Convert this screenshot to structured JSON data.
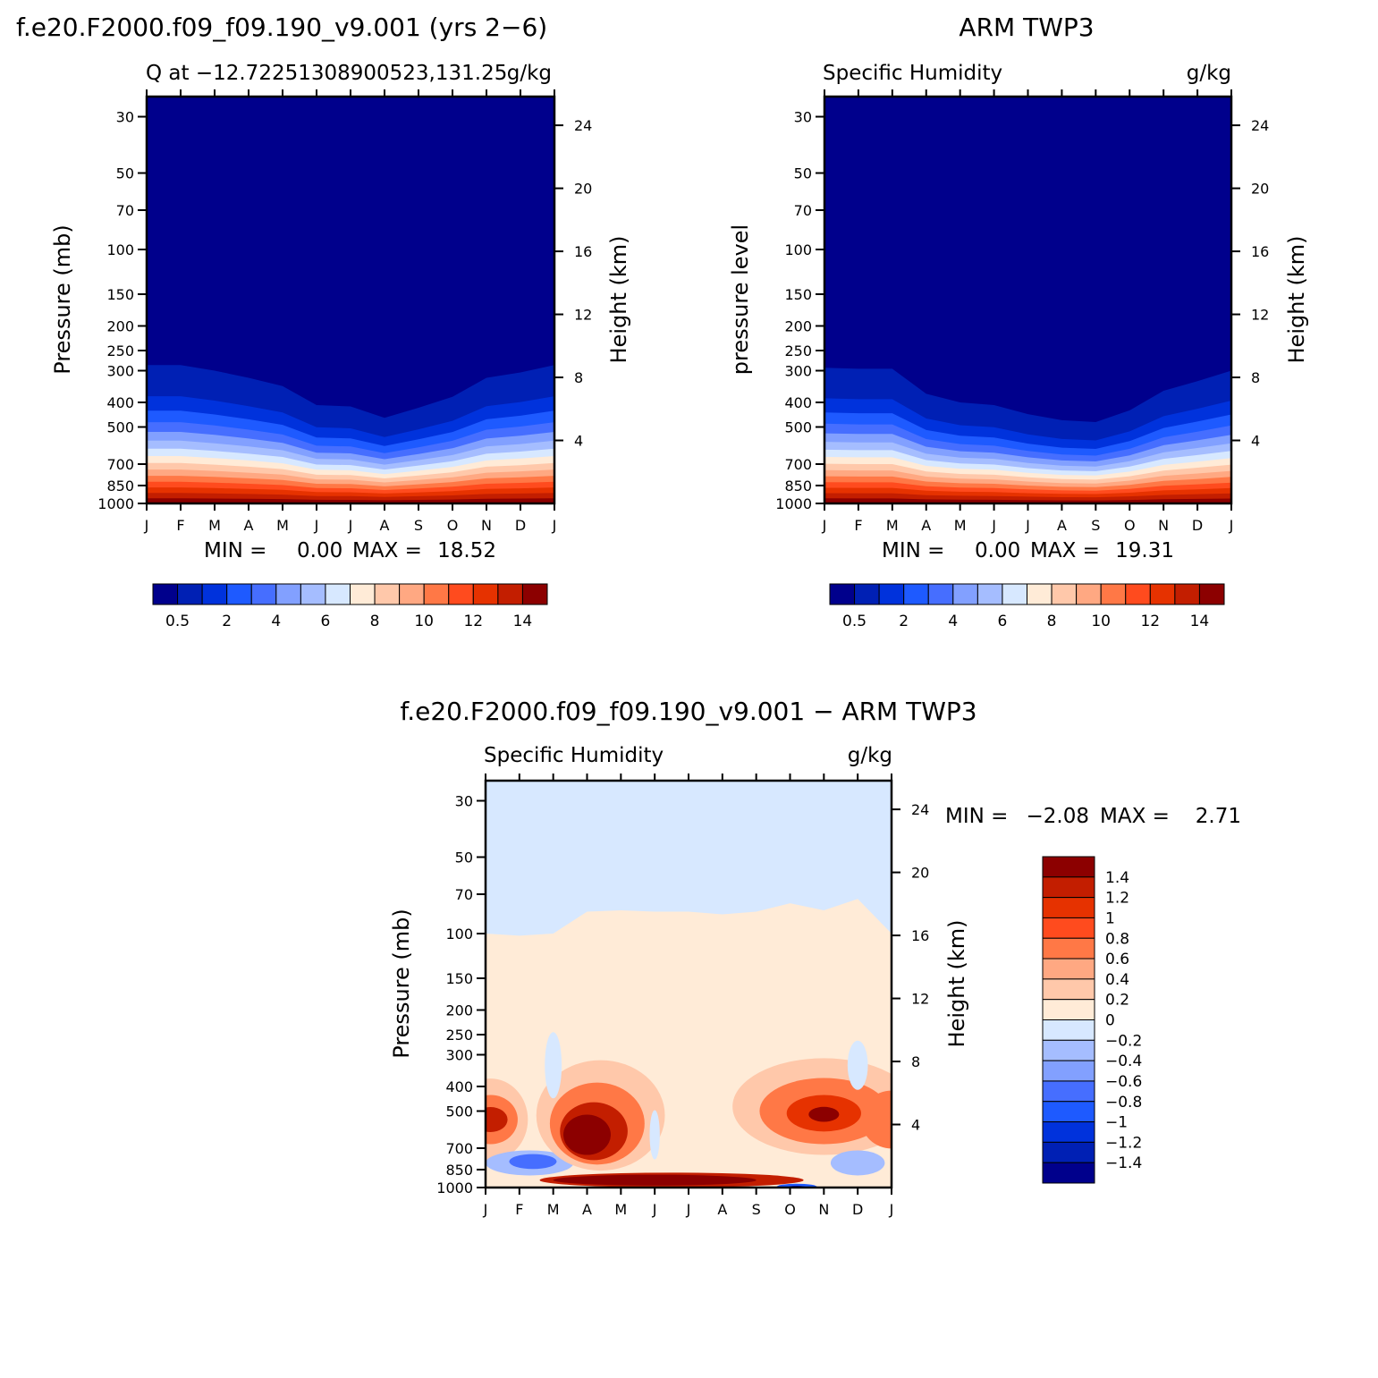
{
  "chart_data": [
    {
      "type": "contour",
      "panel": "model",
      "main_title": "f.e20.F2000.f09_f09.190_v9.001 (yrs 2−6)",
      "left_subtitle": "Q at −12.72251308900523,131.25",
      "right_subtitle": "g/kg",
      "ylabel": "Pressure (mb)",
      "ylabel_right": "Height (km)",
      "min_text": "MIN =",
      "min_value": "0.00",
      "max_text": "MAX =",
      "max_value": "18.52",
      "surface_profile_500mb_level_months": [
        0,
        1,
        2,
        3,
        4,
        5,
        6,
        7,
        8,
        9,
        10,
        11,
        12
      ],
      "moisture_top_mb": [
        285,
        285,
        300,
        320,
        345,
        410,
        415,
        460,
        420,
        380,
        320,
        305,
        285
      ]
    },
    {
      "type": "contour",
      "panel": "observations",
      "main_title": "ARM TWP3",
      "left_subtitle": "Specific Humidity",
      "right_subtitle": "g/kg",
      "ylabel": "pressure level",
      "ylabel_right": "Height (km)",
      "min_text": "MIN =",
      "min_value": "0.00",
      "max_text": "MAX =",
      "max_value": "19.31",
      "moisture_top_mb": [
        292,
        295,
        295,
        370,
        400,
        410,
        445,
        470,
        478,
        430,
        360,
        330,
        300
      ]
    },
    {
      "type": "contour",
      "panel": "difference",
      "main_title": "f.e20.F2000.f09_f09.190_v9.001 − ARM TWP3",
      "left_subtitle": "Specific Humidity",
      "right_subtitle": "g/kg",
      "ylabel": "Pressure (mb)",
      "ylabel_right": "Height (km)",
      "min_text": "MIN =",
      "min_value": "−2.08",
      "max_text": "MAX =",
      "max_value": "2.71",
      "boundary_top_mb": [
        100,
        102,
        100,
        82,
        81,
        82,
        82,
        84,
        82,
        76,
        81,
        73,
        100
      ]
    }
  ],
  "axes": {
    "x_months": [
      "J",
      "F",
      "M",
      "A",
      "M",
      "J",
      "J",
      "A",
      "S",
      "O",
      "N",
      "D",
      "J"
    ],
    "pressure_ticks": [
      "30",
      "50",
      "70",
      "100",
      "150",
      "200",
      "250",
      "300",
      "400",
      "500",
      "700",
      "850",
      "1000"
    ],
    "pressure_values": [
      30,
      50,
      70,
      100,
      150,
      200,
      250,
      300,
      400,
      500,
      700,
      850,
      1000
    ],
    "height_ticks": [
      "24",
      "20",
      "16",
      "12",
      "8",
      "4"
    ],
    "height_values": [
      24,
      20,
      16,
      12,
      8,
      4
    ],
    "p_top": 25
  },
  "colorbar_abs": {
    "labels": [
      "0.5",
      "2",
      "4",
      "6",
      "8",
      "10",
      "12",
      "14"
    ],
    "colors": [
      "#00008c",
      "#0020b4",
      "#0032dc",
      "#1e5aff",
      "#466eff",
      "#82a0ff",
      "#a5bdff",
      "#d7e8ff",
      "#ffebd7",
      "#ffc8aa",
      "#ffa882",
      "#ff7846",
      "#ff4b1e",
      "#e63200",
      "#c31e00",
      "#8c0000"
    ]
  },
  "colorbar_diff": {
    "labels": [
      "1.4",
      "1.2",
      "1",
      "0.8",
      "0.6",
      "0.4",
      "0.2",
      "0",
      "−0.2",
      "−0.4",
      "−0.6",
      "−0.8",
      "−1",
      "−1.2",
      "−1.4"
    ],
    "colors": [
      "#8c0000",
      "#c31e00",
      "#e63200",
      "#ff4b1e",
      "#ff7846",
      "#ffa882",
      "#ffc8aa",
      "#ffebd7",
      "#d7e8ff",
      "#a5bdff",
      "#82a0ff",
      "#466eff",
      "#1e5aff",
      "#0032dc",
      "#0020b4",
      "#00008c"
    ]
  }
}
